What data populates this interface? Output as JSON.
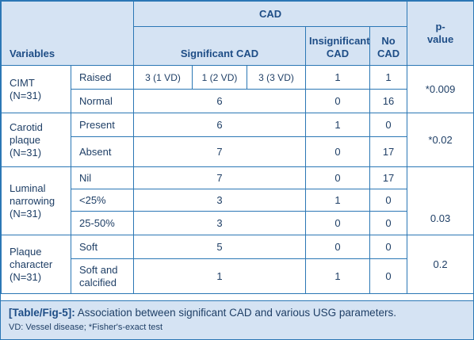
{
  "header": {
    "variables": "Variables",
    "cad": "CAD",
    "significant_cad": "Significant CAD",
    "insignificant_cad": "Insignificant CAD",
    "no_cad": "No CAD",
    "p_value": "p-value"
  },
  "rows": {
    "cimt": {
      "variable": "CIMT (N=31)",
      "raised": {
        "label": "Raised",
        "vd1": "3 (1 VD)",
        "vd2": "1 (2 VD)",
        "vd3": "3 (3 VD)",
        "insignificant": "1",
        "no_cad": "1"
      },
      "normal": {
        "label": "Normal",
        "significant": "6",
        "insignificant": "0",
        "no_cad": "16"
      },
      "p_value": "*0.009"
    },
    "carotid": {
      "variable": "Carotid plaque (N=31)",
      "present": {
        "label": "Present",
        "significant": "6",
        "insignificant": "1",
        "no_cad": "0"
      },
      "absent": {
        "label": "Absent",
        "significant": "7",
        "insignificant": "0",
        "no_cad": "17"
      },
      "p_value": "*0.02"
    },
    "luminal": {
      "variable": "Luminal narrowing (N=31)",
      "nil": {
        "label": "Nil",
        "significant": "7",
        "insignificant": "0",
        "no_cad": "17"
      },
      "lt25": {
        "label": "<25%",
        "significant": "3",
        "insignificant": "1",
        "no_cad": "0"
      },
      "r25_50": {
        "label": "25-50%",
        "significant": "3",
        "insignificant": "0",
        "no_cad": "0"
      },
      "p_value": "0.03"
    },
    "plaque": {
      "variable": "Plaque character (N=31)",
      "soft": {
        "label": "Soft",
        "significant": "5",
        "insignificant": "0",
        "no_cad": "0"
      },
      "soft_calcified": {
        "label": "Soft and calcified",
        "significant": "1",
        "insignificant": "1",
        "no_cad": "0"
      },
      "p_value": "0.2"
    }
  },
  "caption": {
    "label": "[Table/Fig-5]:",
    "text": " Association between significant CAD and various USG parameters.",
    "footnote": "VD: Vessel disease; *Fisher's-exact test"
  }
}
